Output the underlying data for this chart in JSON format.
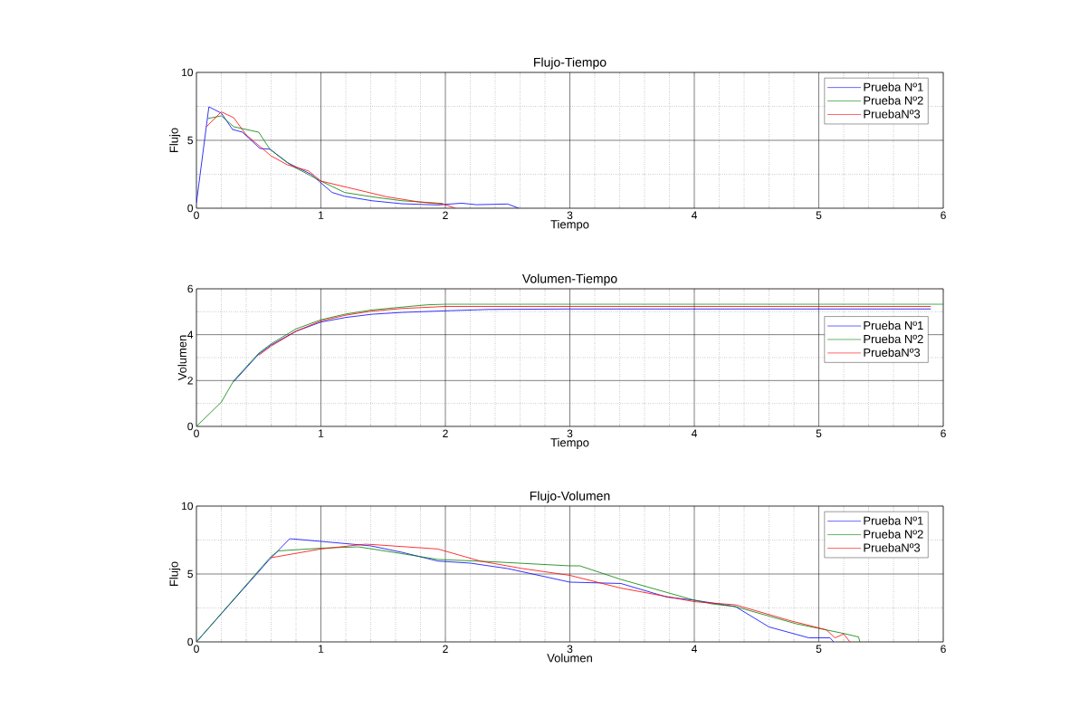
{
  "chart_data": [
    {
      "type": "line",
      "title": "Flujo-Tiempo",
      "xlabel": "Tiempo",
      "ylabel": "Flujo",
      "xlim": [
        0,
        6
      ],
      "ylim": [
        0,
        10
      ],
      "xticks": [
        0,
        1,
        2,
        3,
        4,
        5,
        6
      ],
      "yticks": [
        0,
        5,
        10
      ],
      "grid": true,
      "legend": "top right",
      "series": [
        {
          "name": "Prueba Nº1",
          "color": "#0000ff",
          "x": [
            0,
            0.1,
            0.2,
            0.29,
            0.37,
            0.51,
            0.59,
            0.73,
            0.92,
            1.0,
            1.09,
            1.19,
            1.41,
            1.65,
            1.94,
            2.13,
            2.25,
            2.5,
            2.59
          ],
          "values": [
            0.4,
            7.47,
            7.0,
            5.8,
            5.6,
            4.4,
            4.35,
            3.36,
            2.5,
            1.87,
            1.16,
            0.88,
            0.55,
            0.33,
            0.24,
            0.37,
            0.26,
            0.31,
            0
          ]
        },
        {
          "name": "Prueba Nº2",
          "color": "#008000",
          "x": [
            0.09,
            0.2,
            0.3,
            0.5,
            0.59,
            0.77,
            1.0,
            1.19,
            1.41,
            1.65,
            1.98
          ],
          "values": [
            6.6,
            6.8,
            6.0,
            5.6,
            4.35,
            3.1,
            2.0,
            1.16,
            0.84,
            0.55,
            0.35
          ]
        },
        {
          "name": "PruebaNº3",
          "color": "#ff0000",
          "x": [
            0.08,
            0.2,
            0.3,
            0.4,
            0.6,
            0.73,
            0.9,
            1.0,
            1.21,
            1.53,
            1.79,
            1.99,
            2.08
          ],
          "values": [
            6.0,
            7.1,
            6.66,
            5.4,
            3.85,
            3.2,
            2.75,
            2.0,
            1.54,
            0.84,
            0.46,
            0.29,
            0
          ]
        }
      ]
    },
    {
      "type": "line",
      "title": "Volumen-Tiempo",
      "xlabel": "Tiempo",
      "ylabel": "Volumen",
      "xlim": [
        0,
        6
      ],
      "ylim": [
        0,
        6
      ],
      "xticks": [
        0,
        1,
        2,
        3,
        4,
        5,
        6
      ],
      "yticks": [
        0,
        2,
        4,
        6
      ],
      "grid": true,
      "legend": "top right",
      "series": [
        {
          "name": "Prueba Nº1",
          "color": "#0000ff",
          "x": [
            0.3,
            0.5,
            0.6,
            0.8,
            1.0,
            1.2,
            1.41,
            1.65,
            2.0,
            2.35,
            3.0,
            5.9
          ],
          "values": [
            1.95,
            3.15,
            3.55,
            4.15,
            4.55,
            4.75,
            4.89,
            4.97,
            5.04,
            5.1,
            5.12,
            5.12
          ]
        },
        {
          "name": "Prueba Nº2",
          "color": "#008000",
          "x": [
            0,
            0.2,
            0.3,
            0.5,
            0.6,
            0.8,
            1.0,
            1.2,
            1.4,
            1.65,
            1.85,
            2.0,
            6.0
          ],
          "values": [
            0,
            1.06,
            2.0,
            3.19,
            3.6,
            4.25,
            4.65,
            4.9,
            5.07,
            5.2,
            5.3,
            5.33,
            5.33
          ]
        },
        {
          "name": "PruebaNº3",
          "color": "#ff0000",
          "x": [
            0.5,
            0.6,
            0.8,
            1.0,
            1.2,
            1.4,
            1.65,
            2.0,
            5.9
          ],
          "values": [
            3.1,
            3.5,
            4.15,
            4.6,
            4.85,
            5.02,
            5.14,
            5.23,
            5.23
          ]
        }
      ]
    },
    {
      "type": "line",
      "title": "Flujo-Volumen",
      "xlabel": "Volumen",
      "ylabel": "Flujo",
      "xlim": [
        0,
        6
      ],
      "ylim": [
        0,
        10
      ],
      "xticks": [
        0,
        1,
        2,
        3,
        4,
        5,
        6
      ],
      "yticks": [
        0,
        5,
        10
      ],
      "grid": true,
      "legend": "top right",
      "series": [
        {
          "name": "Prueba Nº1",
          "color": "#0000ff",
          "x": [
            0,
            0.58,
            0.75,
            1.0,
            1.4,
            1.65,
            1.94,
            2.2,
            2.5,
            3.0,
            3.41,
            3.78,
            4.0,
            4.33,
            4.6,
            4.92,
            5.09,
            5.12
          ],
          "values": [
            0,
            6.0,
            7.6,
            7.4,
            7.07,
            6.6,
            5.95,
            5.8,
            5.4,
            4.4,
            4.3,
            3.3,
            3.07,
            2.6,
            1.1,
            0.3,
            0.3,
            0
          ]
        },
        {
          "name": "Prueba Nº2",
          "color": "#008000",
          "x": [
            0,
            0.6,
            0.66,
            1.0,
            1.3,
            1.65,
            1.94,
            2.38,
            3.0,
            3.08,
            3.41,
            4.0,
            4.14,
            4.33,
            4.82,
            5.2,
            5.32,
            5.33
          ],
          "values": [
            0,
            6.3,
            6.7,
            6.9,
            7.0,
            6.5,
            6.07,
            5.9,
            5.6,
            5.6,
            4.6,
            3.07,
            2.8,
            2.6,
            1.33,
            0.62,
            0.36,
            0
          ]
        },
        {
          "name": "PruebaNº3",
          "color": "#ff0000",
          "x": [
            0.6,
            1.0,
            1.36,
            1.94,
            2.28,
            2.62,
            3.0,
            3.41,
            4.0,
            4.33,
            4.77,
            5.06,
            5.13,
            5.2,
            5.25
          ],
          "values": [
            6.2,
            6.84,
            7.2,
            6.84,
            5.95,
            5.4,
            4.9,
            3.96,
            2.96,
            2.73,
            1.56,
            0.89,
            0.3,
            0.58,
            0
          ]
        }
      ]
    }
  ]
}
